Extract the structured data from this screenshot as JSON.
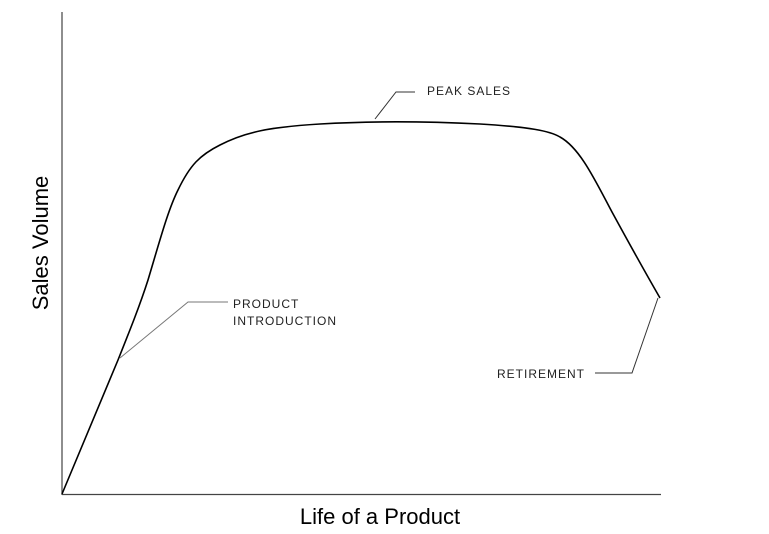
{
  "diagram": {
    "y_axis_label": "Sales Volume",
    "x_axis_label": "Life of a Product",
    "annotations": {
      "peak": "PEAK SALES",
      "introduction": [
        "PRODUCT",
        "INTRODUCTION"
      ],
      "retirement": "RETIREMENT"
    }
  }
}
